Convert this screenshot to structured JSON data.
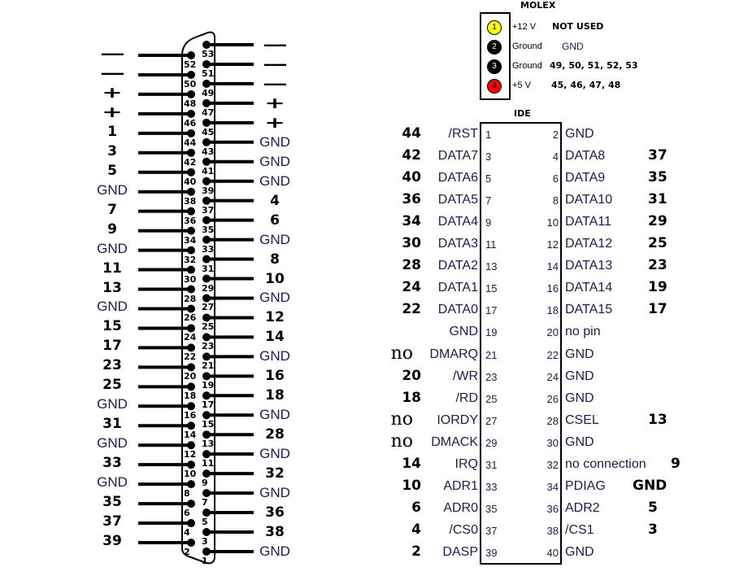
{
  "molex": {
    "title": "MOLEX",
    "pins": [
      {
        "num": "1",
        "color": "#ffff00",
        "text_color": "#000000",
        "name": "+12 V",
        "mapping": "NOT USED"
      },
      {
        "num": "2",
        "color": "#000000",
        "text_color": "#ffffff",
        "name": "Ground",
        "mapping": "GND"
      },
      {
        "num": "3",
        "color": "#000000",
        "text_color": "#ffffff",
        "name": "Ground",
        "mapping": "49, 50, 51, 52, 53"
      },
      {
        "num": "4",
        "color": "#ff0000",
        "text_color": "#000000",
        "name": "+5 V",
        "mapping": "45, 46, 47, 48"
      }
    ]
  },
  "connector": {
    "left_pins": [
      {
        "pin": "52",
        "label": "—"
      },
      {
        "pin": "50",
        "label": "—"
      },
      {
        "pin": "48",
        "label": "+"
      },
      {
        "pin": "46",
        "label": "+"
      },
      {
        "pin": "44",
        "label": "1"
      },
      {
        "pin": "42",
        "label": "3"
      },
      {
        "pin": "40",
        "label": "5"
      },
      {
        "pin": "38",
        "label": "GND"
      },
      {
        "pin": "36",
        "label": "7"
      },
      {
        "pin": "34",
        "label": "9"
      },
      {
        "pin": "32",
        "label": "GND"
      },
      {
        "pin": "30",
        "label": "11"
      },
      {
        "pin": "28",
        "label": "13"
      },
      {
        "pin": "26",
        "label": "GND"
      },
      {
        "pin": "24",
        "label": "15"
      },
      {
        "pin": "22",
        "label": "17"
      },
      {
        "pin": "20",
        "label": "23"
      },
      {
        "pin": "18",
        "label": "25"
      },
      {
        "pin": "16",
        "label": "GND"
      },
      {
        "pin": "14",
        "label": "31"
      },
      {
        "pin": "12",
        "label": "GND"
      },
      {
        "pin": "10",
        "label": "33"
      },
      {
        "pin": "8",
        "label": "GND"
      },
      {
        "pin": "6",
        "label": "35"
      },
      {
        "pin": "4",
        "label": "37"
      },
      {
        "pin": "2",
        "label": "39"
      }
    ],
    "right_pins": [
      {
        "pin": "53",
        "label": "—"
      },
      {
        "pin": "51",
        "label": "—"
      },
      {
        "pin": "49",
        "label": "—"
      },
      {
        "pin": "47",
        "label": "+"
      },
      {
        "pin": "45",
        "label": "+"
      },
      {
        "pin": "43",
        "label": "GND"
      },
      {
        "pin": "41",
        "label": "GND"
      },
      {
        "pin": "39",
        "label": "GND"
      },
      {
        "pin": "37",
        "label": "4"
      },
      {
        "pin": "35",
        "label": "6"
      },
      {
        "pin": "33",
        "label": "GND"
      },
      {
        "pin": "31",
        "label": "8"
      },
      {
        "pin": "29",
        "label": "10"
      },
      {
        "pin": "27",
        "label": "GND"
      },
      {
        "pin": "25",
        "label": "12"
      },
      {
        "pin": "23",
        "label": "14"
      },
      {
        "pin": "21",
        "label": "GND"
      },
      {
        "pin": "19",
        "label": "16"
      },
      {
        "pin": "17",
        "label": "18"
      },
      {
        "pin": "15",
        "label": "GND"
      },
      {
        "pin": "13",
        "label": "28"
      },
      {
        "pin": "11",
        "label": "GND"
      },
      {
        "pin": "9",
        "label": "32"
      },
      {
        "pin": "7",
        "label": "GND"
      },
      {
        "pin": "5",
        "label": "36"
      },
      {
        "pin": "3",
        "label": "38"
      },
      {
        "pin": "1",
        "label": "GND"
      }
    ]
  },
  "ide": {
    "title": "IDE",
    "rows": [
      {
        "lext": "44",
        "lsig": "/RST",
        "lpin": "1",
        "rpin": "2",
        "rsig": "GND",
        "rext": ""
      },
      {
        "lext": "42",
        "lsig": "DATA7",
        "lpin": "3",
        "rpin": "4",
        "rsig": "DATA8",
        "rext": "37"
      },
      {
        "lext": "40",
        "lsig": "DATA6",
        "lpin": "5",
        "rpin": "6",
        "rsig": "DATA9",
        "rext": "35"
      },
      {
        "lext": "36",
        "lsig": "DATA5",
        "lpin": "7",
        "rpin": "8",
        "rsig": "DATA10",
        "rext": "31"
      },
      {
        "lext": "34",
        "lsig": "DATA4",
        "lpin": "9",
        "rpin": "10",
        "rsig": "DATA11",
        "rext": "29"
      },
      {
        "lext": "30",
        "lsig": "DATA3",
        "lpin": "11",
        "rpin": "12",
        "rsig": "DATA12",
        "rext": "25"
      },
      {
        "lext": "28",
        "lsig": "DATA2",
        "lpin": "13",
        "rpin": "14",
        "rsig": "DATA13",
        "rext": "23"
      },
      {
        "lext": "24",
        "lsig": "DATA1",
        "lpin": "15",
        "rpin": "16",
        "rsig": "DATA14",
        "rext": "19"
      },
      {
        "lext": "22",
        "lsig": "DATA0",
        "lpin": "17",
        "rpin": "18",
        "rsig": "DATA15",
        "rext": "17"
      },
      {
        "lext": "",
        "lsig": "GND",
        "lpin": "19",
        "rpin": "20",
        "rsig": "no pin",
        "rext": ""
      },
      {
        "lext": "no",
        "lsig": "DMARQ",
        "lpin": "21",
        "rpin": "22",
        "rsig": "GND",
        "rext": ""
      },
      {
        "lext": "20",
        "lsig": "/WR",
        "lpin": "23",
        "rpin": "24",
        "rsig": "GND",
        "rext": ""
      },
      {
        "lext": "18",
        "lsig": "/RD",
        "lpin": "25",
        "rpin": "26",
        "rsig": "GND",
        "rext": ""
      },
      {
        "lext": "no",
        "lsig": "IORDY",
        "lpin": "27",
        "rpin": "28",
        "rsig": "CSEL",
        "rext": "13"
      },
      {
        "lext": "no",
        "lsig": "DMACK",
        "lpin": "29",
        "rpin": "30",
        "rsig": "GND",
        "rext": ""
      },
      {
        "lext": "14",
        "lsig": "IRQ",
        "lpin": "31",
        "rpin": "32",
        "rsig": "no connection",
        "rext": "9"
      },
      {
        "lext": "10",
        "lsig": "ADR1",
        "lpin": "33",
        "rpin": "34",
        "rsig": "PDIAG",
        "rext": "GND"
      },
      {
        "lext": "6",
        "lsig": "ADR0",
        "lpin": "35",
        "rpin": "36",
        "rsig": "ADR2",
        "rext": "5"
      },
      {
        "lext": "4",
        "lsig": "/CS0",
        "lpin": "37",
        "rpin": "38",
        "rsig": "/CS1",
        "rext": "3"
      },
      {
        "lext": "2",
        "lsig": "DASP",
        "lpin": "39",
        "rpin": "40",
        "rsig": "GND",
        "rext": ""
      }
    ]
  }
}
